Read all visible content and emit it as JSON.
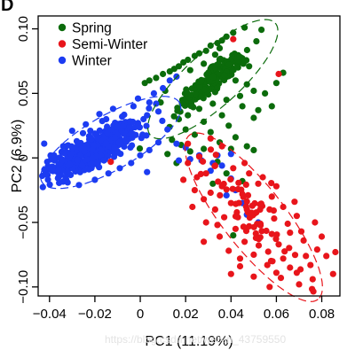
{
  "chart_data": {
    "type": "scatter",
    "panel_label": "D",
    "xlabel": "PC1 (11.19%)",
    "ylabel": "PC2 (6.9%)",
    "xlim": [
      -0.045,
      0.088
    ],
    "ylim": [
      -0.107,
      0.11
    ],
    "x_ticks": [
      -0.04,
      -0.02,
      0,
      0.02,
      0.04,
      0.06,
      0.08
    ],
    "x_tick_labels": [
      "−0.04",
      "−0.02",
      "0",
      "0.02",
      "0.04",
      "0.06",
      "0.08"
    ],
    "y_ticks": [
      -0.1,
      -0.05,
      0,
      0.05,
      0.1
    ],
    "y_tick_labels": [
      "−0.10",
      "−0.05",
      "0",
      "0.05",
      "0.10"
    ],
    "grid": false,
    "legend_position": "top-left",
    "series": [
      {
        "name": "Spring",
        "color": "#0b6b0b",
        "ellipse": {
          "cx": 0.032,
          "cy": 0.061,
          "rx": 0.037,
          "ry": 0.021,
          "angle_deg": -42
        },
        "cluster": {
          "cx": 0.032,
          "cy": 0.061,
          "sx": 0.011,
          "sy": 0.0045,
          "angle_deg": -42
        },
        "values": [
          [
            0.046,
            0.101
          ],
          [
            0.041,
            0.097
          ],
          [
            0.038,
            0.094
          ],
          [
            0.036,
            0.091
          ],
          [
            0.034,
            0.089
          ],
          [
            0.031,
            0.087
          ],
          [
            0.035,
            0.085
          ],
          [
            0.029,
            0.083
          ],
          [
            0.026,
            0.081
          ],
          [
            0.033,
            0.08
          ],
          [
            0.024,
            0.079
          ],
          [
            0.021,
            0.076
          ],
          [
            0.019,
            0.074
          ],
          [
            0.028,
            0.073
          ],
          [
            0.017,
            0.071
          ],
          [
            0.015,
            0.069
          ],
          [
            0.013,
            0.067
          ],
          [
            0.01,
            0.065
          ],
          [
            0.007,
            0.062
          ],
          [
            0.004,
            0.06
          ],
          [
            0.002,
            0.058
          ],
          [
            0.022,
            0.068
          ],
          [
            0.03,
            0.066
          ],
          [
            0.037,
            0.064
          ],
          [
            0.042,
            0.06
          ],
          [
            0.047,
            0.057
          ],
          [
            0.05,
            0.052
          ],
          [
            0.055,
            0.05
          ],
          [
            0.044,
            0.048
          ],
          [
            0.038,
            0.045
          ],
          [
            0.032,
            0.042
          ],
          [
            0.026,
            0.038
          ],
          [
            0.021,
            0.033
          ],
          [
            0.017,
            0.03
          ],
          [
            0.028,
            0.028
          ],
          [
            0.036,
            0.033
          ],
          [
            0.045,
            0.04
          ],
          [
            0.052,
            0.037
          ],
          [
            0.02,
            0.022
          ],
          [
            0.024,
            0.018
          ],
          [
            0.031,
            0.02
          ],
          [
            0.039,
            0.025
          ],
          [
            0.014,
            0.014
          ],
          [
            0.018,
            0.01
          ],
          [
            0.012,
            0.003
          ],
          [
            0.016,
            -0.004
          ],
          [
            0.022,
            0.005
          ],
          [
            0.058,
            0.04
          ],
          [
            0.05,
            0.031
          ],
          [
            0.042,
            0.016
          ],
          [
            0.035,
            0.012
          ],
          [
            0.028,
            0.007
          ],
          [
            0.04,
            0.007
          ],
          [
            0.034,
            -0.003
          ],
          [
            0.047,
            0.009
          ],
          [
            0.038,
            -0.012
          ],
          [
            0.05,
            0.006
          ],
          [
            0.045,
            -0.018
          ],
          [
            0.032,
            -0.02
          ],
          [
            0.06,
            0.058
          ],
          [
            0.063,
            0.066
          ],
          [
            0.041,
            -0.06
          ],
          [
            0.033,
            0.051
          ],
          [
            0.027,
            0.06
          ],
          [
            0.048,
            0.071
          ],
          [
            0.009,
            0.043
          ],
          [
            0.011,
            0.052
          ]
        ]
      },
      {
        "name": "Semi-Winter",
        "color": "#e8151b",
        "ellipse": {
          "cx": 0.05,
          "cy": -0.046,
          "rx": 0.046,
          "ry": 0.024,
          "angle_deg": 52
        },
        "cluster": {
          "cx": 0.05,
          "cy": -0.046,
          "sx": 0.014,
          "sy": 0.007,
          "angle_deg": 52
        },
        "values": [
          [
            0.041,
            0.092
          ],
          [
            0.061,
            0.065
          ],
          [
            -0.013,
            -0.003
          ],
          [
            0.021,
            0.011
          ],
          [
            0.031,
            0.015
          ],
          [
            0.036,
            0.009
          ],
          [
            0.026,
            0.001
          ],
          [
            0.033,
            -0.006
          ],
          [
            0.041,
            -0.008
          ],
          [
            0.048,
            -0.012
          ],
          [
            0.052,
            -0.02
          ],
          [
            0.058,
            -0.03
          ],
          [
            0.063,
            -0.038
          ],
          [
            0.069,
            -0.045
          ],
          [
            0.066,
            -0.058
          ],
          [
            0.061,
            -0.067
          ],
          [
            0.072,
            -0.064
          ],
          [
            0.078,
            -0.071
          ],
          [
            0.075,
            -0.083
          ],
          [
            0.069,
            -0.089
          ],
          [
            0.082,
            -0.076
          ],
          [
            0.085,
            -0.09
          ],
          [
            0.07,
            -0.098
          ],
          [
            0.062,
            -0.093
          ],
          [
            0.056,
            -0.083
          ],
          [
            0.05,
            -0.075
          ],
          [
            0.046,
            -0.065
          ],
          [
            0.042,
            -0.055
          ],
          [
            0.037,
            -0.046
          ],
          [
            0.033,
            -0.04
          ],
          [
            0.028,
            -0.032
          ],
          [
            0.024,
            -0.025
          ],
          [
            0.019,
            -0.017
          ],
          [
            0.023,
            -0.038
          ],
          [
            0.029,
            -0.05
          ],
          [
            0.035,
            -0.061
          ],
          [
            0.039,
            -0.072
          ],
          [
            0.044,
            -0.084
          ],
          [
            0.05,
            -0.092
          ],
          [
            0.057,
            -0.1
          ],
          [
            0.053,
            -0.051
          ],
          [
            0.059,
            -0.047
          ],
          [
            0.065,
            -0.051
          ],
          [
            0.071,
            -0.057
          ],
          [
            0.08,
            -0.061
          ],
          [
            0.077,
            -0.05
          ],
          [
            0.068,
            -0.034
          ],
          [
            0.06,
            -0.022
          ],
          [
            0.054,
            -0.015
          ],
          [
            0.045,
            -0.028
          ],
          [
            0.04,
            -0.035
          ],
          [
            0.031,
            -0.027
          ],
          [
            0.025,
            -0.015
          ],
          [
            0.034,
            -0.052
          ],
          [
            0.047,
            -0.04
          ],
          [
            0.057,
            -0.04
          ],
          [
            0.063,
            -0.078
          ],
          [
            0.073,
            -0.076
          ],
          [
            0.086,
            -0.073
          ],
          [
            0.028,
            -0.065
          ],
          [
            0.04,
            -0.09
          ],
          [
            0.066,
            -0.085
          ],
          [
            0.076,
            -0.094
          ],
          [
            0.048,
            -0.053
          ],
          [
            0.051,
            -0.062
          ],
          [
            0.058,
            -0.059
          ],
          [
            0.043,
            -0.046
          ],
          [
            0.036,
            -0.022
          ],
          [
            0.021,
            -0.004
          ],
          [
            0.029,
            -0.012
          ],
          [
            0.046,
            -0.004
          ],
          [
            0.044,
            -0.078
          ],
          [
            0.06,
            -0.089
          ]
        ]
      },
      {
        "name": "Winter",
        "color": "#1c3cf2",
        "ellipse": {
          "cx": -0.013,
          "cy": 0.012,
          "rx": 0.035,
          "ry": 0.021,
          "angle_deg": -30
        },
        "cluster": {
          "cx": -0.021,
          "cy": 0.006,
          "sx": 0.011,
          "sy": 0.0055,
          "angle_deg": -30
        },
        "values": [
          [
            -0.04,
            -0.008
          ],
          [
            -0.036,
            -0.015
          ],
          [
            -0.032,
            -0.019
          ],
          [
            -0.027,
            -0.021
          ],
          [
            -0.02,
            -0.017
          ],
          [
            -0.014,
            -0.012
          ],
          [
            -0.009,
            -0.008
          ],
          [
            -0.004,
            -0.004
          ],
          [
            0.0,
            0.002
          ],
          [
            0.004,
            0.006
          ],
          [
            0.008,
            0.012
          ],
          [
            0.012,
            0.022
          ],
          [
            0.008,
            0.036
          ],
          [
            0.004,
            0.043
          ],
          [
            -0.001,
            0.046
          ],
          [
            0.006,
            0.05
          ],
          [
            0.01,
            0.054
          ],
          [
            0.013,
            0.06
          ],
          [
            0.016,
            0.063
          ],
          [
            -0.003,
            0.04
          ],
          [
            -0.008,
            0.032
          ],
          [
            -0.01,
            0.024
          ],
          [
            -0.015,
            0.03
          ],
          [
            -0.022,
            0.021
          ],
          [
            -0.028,
            0.013
          ],
          [
            -0.034,
            0.009
          ],
          [
            -0.038,
            0.002
          ],
          [
            -0.041,
            -0.003
          ],
          [
            0.017,
            -0.002
          ],
          [
            0.022,
            -0.001
          ],
          [
            0.027,
            -0.002
          ],
          [
            0.032,
            -0.004
          ],
          [
            0.036,
            -0.006
          ],
          [
            0.031,
            -0.01
          ],
          [
            0.04,
            -0.016
          ],
          [
            0.042,
            -0.025
          ],
          [
            0.045,
            -0.035
          ],
          [
            0.038,
            -0.029
          ],
          [
            0.047,
            -0.044
          ],
          [
            0.052,
            -0.05
          ],
          [
            0.04,
            0.003
          ],
          [
            0.026,
            0.002
          ],
          [
            -0.018,
            0.034
          ],
          [
            -0.012,
            0.038
          ],
          [
            -0.026,
            0.007
          ],
          [
            -0.031,
            -0.005
          ],
          [
            -0.021,
            0.0
          ],
          [
            -0.006,
            0.013
          ],
          [
            0.001,
            0.018
          ],
          [
            -0.001,
            0.027
          ],
          [
            0.003,
            0.033
          ],
          [
            0.007,
            0.042
          ],
          [
            -0.016,
            -0.002
          ],
          [
            -0.01,
            0.005
          ],
          [
            -0.024,
            0.026
          ],
          [
            0.016,
            0.011
          ],
          [
            0.02,
            0.008
          ],
          [
            -0.03,
            0.021
          ],
          [
            0.003,
            -0.011
          ],
          [
            0.034,
            0.002
          ]
        ]
      }
    ]
  },
  "watermark": "https://blog.csdn.net/weixin_43759550"
}
